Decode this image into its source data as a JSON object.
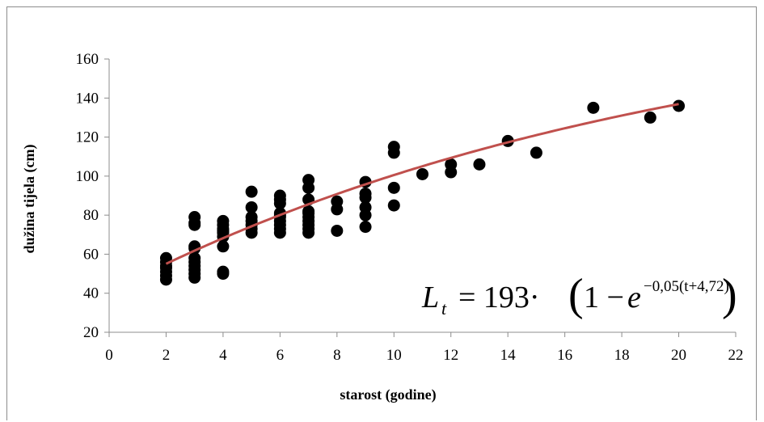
{
  "chart_data": {
    "type": "scatter",
    "title": "",
    "xlabel": "starost (godine)",
    "ylabel": "dužina tijela (cm)",
    "xlim": [
      0,
      22
    ],
    "ylim": [
      20,
      160
    ],
    "xticks": [
      0,
      2,
      4,
      6,
      8,
      10,
      12,
      14,
      16,
      18,
      20,
      22
    ],
    "yticks": [
      20,
      40,
      60,
      80,
      100,
      120,
      140,
      160
    ],
    "grid": false,
    "colors": {
      "points": "#000000",
      "curve": "#c0504d",
      "axis": "#8c8c8c"
    },
    "points": [
      [
        2,
        47
      ],
      [
        2,
        49
      ],
      [
        2,
        51
      ],
      [
        2,
        53
      ],
      [
        2,
        54
      ],
      [
        2,
        56
      ],
      [
        2,
        58
      ],
      [
        3,
        48
      ],
      [
        3,
        50
      ],
      [
        3,
        52
      ],
      [
        3,
        54
      ],
      [
        3,
        56
      ],
      [
        3,
        58
      ],
      [
        3,
        63
      ],
      [
        3,
        64
      ],
      [
        3,
        75
      ],
      [
        3,
        76
      ],
      [
        3,
        79
      ],
      [
        4,
        50
      ],
      [
        4,
        51
      ],
      [
        4,
        64
      ],
      [
        4,
        69
      ],
      [
        4,
        71
      ],
      [
        4,
        72
      ],
      [
        4,
        73
      ],
      [
        4,
        75
      ],
      [
        4,
        77
      ],
      [
        5,
        71
      ],
      [
        5,
        73
      ],
      [
        5,
        75
      ],
      [
        5,
        77
      ],
      [
        5,
        79
      ],
      [
        5,
        84
      ],
      [
        5,
        92
      ],
      [
        6,
        71
      ],
      [
        6,
        73
      ],
      [
        6,
        75
      ],
      [
        6,
        77
      ],
      [
        6,
        79
      ],
      [
        6,
        80
      ],
      [
        6,
        81
      ],
      [
        6,
        86
      ],
      [
        6,
        88
      ],
      [
        6,
        90
      ],
      [
        7,
        71
      ],
      [
        7,
        73
      ],
      [
        7,
        75
      ],
      [
        7,
        77
      ],
      [
        7,
        79
      ],
      [
        7,
        81
      ],
      [
        7,
        82
      ],
      [
        7,
        88
      ],
      [
        7,
        94
      ],
      [
        7,
        98
      ],
      [
        8,
        72
      ],
      [
        8,
        83
      ],
      [
        8,
        87
      ],
      [
        9,
        74
      ],
      [
        9,
        80
      ],
      [
        9,
        84
      ],
      [
        9,
        89
      ],
      [
        9,
        91
      ],
      [
        9,
        97
      ],
      [
        10,
        85
      ],
      [
        10,
        94
      ],
      [
        10,
        112
      ],
      [
        10,
        115
      ],
      [
        11,
        101
      ],
      [
        12,
        102
      ],
      [
        12,
        106
      ],
      [
        13,
        106
      ],
      [
        14,
        118
      ],
      [
        15,
        112
      ],
      [
        17,
        135
      ],
      [
        19,
        130
      ],
      [
        20,
        136
      ]
    ],
    "series": [
      {
        "type": "line",
        "function": "L = 193*(1 - exp(-0.05*(t + 4.72)))",
        "x_range": [
          2,
          20
        ]
      }
    ],
    "equation": {
      "lhs": "L",
      "lhs_sub": "t",
      "rhs": "= 193·",
      "paren_open": "(",
      "paren_close": ")",
      "one_minus": "1 − ",
      "base": "e",
      "exponent": "−0,05(t+4,72)"
    }
  }
}
